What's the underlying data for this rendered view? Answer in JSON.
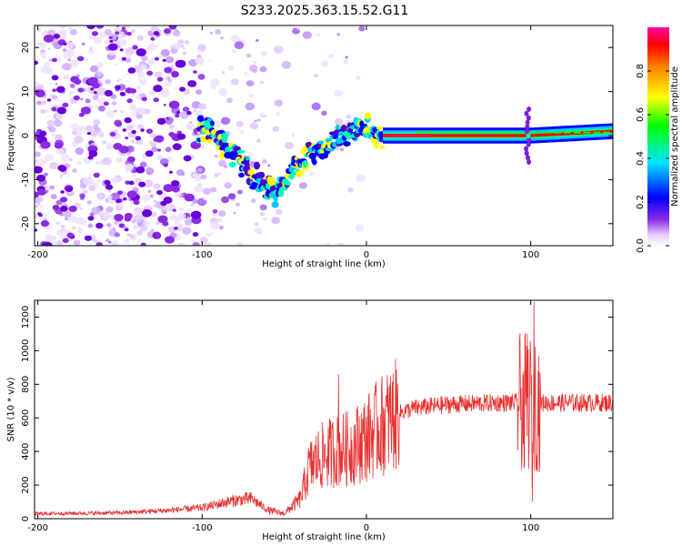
{
  "title": "S233.2025.363.15.52.G11",
  "chart_data": [
    {
      "type": "heatmap",
      "name": "spectrogram",
      "xlabel": "Height of straight line (km)",
      "ylabel": "Frequency (Hz)",
      "xlim": [
        -202,
        150
      ],
      "ylim": [
        -25,
        25
      ],
      "xticks": [
        -200,
        -100,
        0,
        100
      ],
      "yticks": [
        -20,
        -10,
        0,
        10,
        20
      ],
      "colorbar": {
        "label": "Normalized spectral amplitude",
        "range": [
          0,
          1
        ],
        "ticks": [
          0.0,
          0.2,
          0.4,
          0.6,
          0.8
        ]
      },
      "ridge": [
        {
          "x": -100,
          "y": 1.5
        },
        {
          "x": -95,
          "y": 2
        },
        {
          "x": -90,
          "y": -1
        },
        {
          "x": -85,
          "y": -3
        },
        {
          "x": -80,
          "y": -5
        },
        {
          "x": -75,
          "y": -6
        },
        {
          "x": -70,
          "y": -8
        },
        {
          "x": -65,
          "y": -10
        },
        {
          "x": -60,
          "y": -12
        },
        {
          "x": -55,
          "y": -13
        },
        {
          "x": -50,
          "y": -10
        },
        {
          "x": -45,
          "y": -8
        },
        {
          "x": -40,
          "y": -7
        },
        {
          "x": -35,
          "y": -4
        },
        {
          "x": -30,
          "y": -3
        },
        {
          "x": -25,
          "y": -2
        },
        {
          "x": -20,
          "y": -1
        },
        {
          "x": -15,
          "y": 0
        },
        {
          "x": -10,
          "y": 1
        },
        {
          "x": -5,
          "y": 1
        },
        {
          "x": 0,
          "y": 2
        },
        {
          "x": 5,
          "y": 1
        },
        {
          "x": 10,
          "y": 0
        },
        {
          "x": 20,
          "y": 0
        },
        {
          "x": 50,
          "y": 0
        },
        {
          "x": 100,
          "y": 0
        },
        {
          "x": 150,
          "y": 1
        }
      ]
    },
    {
      "type": "line",
      "name": "snr",
      "xlabel": "Height of straight line (km)",
      "ylabel": "SNR (10 * v/v)",
      "xlim": [
        -202,
        150
      ],
      "ylim": [
        0,
        1300
      ],
      "xticks": [
        -200,
        -100,
        0,
        100
      ],
      "yticks": [
        0,
        200,
        400,
        600,
        800,
        1000,
        1200
      ],
      "color": "#e83030",
      "anchors": [
        {
          "x": -202,
          "y": 30
        },
        {
          "x": -150,
          "y": 35
        },
        {
          "x": -120,
          "y": 50
        },
        {
          "x": -100,
          "y": 65
        },
        {
          "x": -80,
          "y": 110
        },
        {
          "x": -70,
          "y": 120
        },
        {
          "x": -60,
          "y": 50
        },
        {
          "x": -50,
          "y": 30
        },
        {
          "x": -40,
          "y": 120
        },
        {
          "x": -35,
          "y": 300
        },
        {
          "x": -30,
          "y": 350
        },
        {
          "x": -25,
          "y": 380
        },
        {
          "x": -20,
          "y": 400
        },
        {
          "x": -10,
          "y": 420
        },
        {
          "x": 0,
          "y": 480
        },
        {
          "x": 10,
          "y": 560
        },
        {
          "x": 20,
          "y": 630
        },
        {
          "x": 30,
          "y": 660
        },
        {
          "x": 50,
          "y": 680
        },
        {
          "x": 80,
          "y": 690
        },
        {
          "x": 100,
          "y": 690
        },
        {
          "x": 150,
          "y": 690
        }
      ],
      "spikes": [
        {
          "x": -17,
          "y": 860
        },
        {
          "x": 102,
          "y": 1290
        },
        {
          "x": 101,
          "y": 100
        },
        {
          "x": 98,
          "y": 1100
        },
        {
          "x": 96,
          "y": 300
        }
      ]
    }
  ]
}
